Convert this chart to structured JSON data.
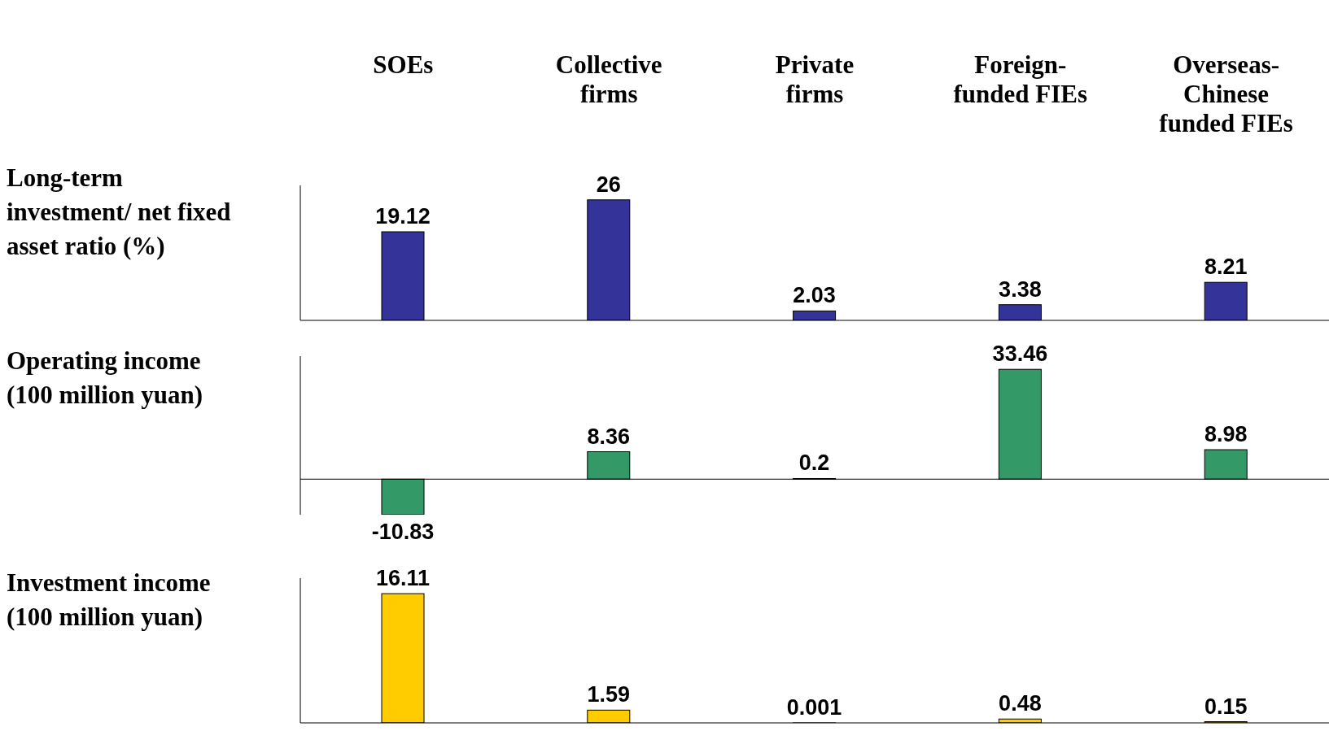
{
  "chart_data": [
    {
      "type": "bar",
      "ylabel": "Long-term investment/ net fixed asset ratio (%)",
      "categories": [
        "SOEs",
        "Collective firms",
        "Private firms",
        "Foreign-funded FIEs",
        "Overseas-Chinese funded FIEs"
      ],
      "values": [
        19.12,
        26,
        2.03,
        3.38,
        8.21
      ],
      "color": "#333399",
      "data_labels": true,
      "tick_labels": "x"
    },
    {
      "type": "bar",
      "ylabel": "Operating income (100 million yuan)",
      "categories": [
        null,
        null,
        null,
        null,
        null
      ],
      "values": [
        -10.83,
        8.36,
        0.2,
        33.46,
        8.98
      ],
      "color": "#339966",
      "data_labels": true
    },
    {
      "type": "bar",
      "ylabel": "Investment income (100 million yuan)",
      "categories": [
        null,
        null,
        null,
        null,
        null
      ],
      "values": [
        16.11,
        1.59,
        0.001,
        0.48,
        0.15
      ],
      "color": "#ffcc00",
      "data_labels": true
    }
  ]
}
